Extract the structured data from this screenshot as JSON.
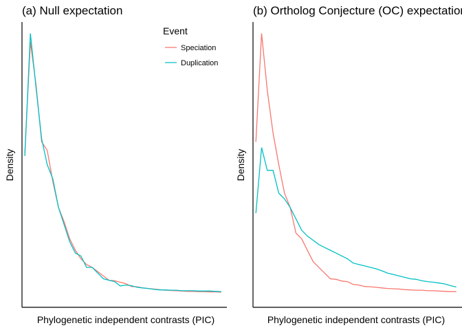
{
  "colors": {
    "speciation": "#F8766D",
    "duplication": "#00BFC4",
    "axis": "#000000",
    "text": "#000000"
  },
  "legend": {
    "title": "Event",
    "entries": [
      {
        "label": "Speciation",
        "color": "#F8766D"
      },
      {
        "label": "Duplication",
        "color": "#00BFC4"
      }
    ],
    "placement": "top-right"
  },
  "chart_data": [
    {
      "type": "line",
      "title": "(a) Null expectation",
      "xlabel": "Phylogenetic independent contrasts (PIC)",
      "ylabel": "Density",
      "grid": false,
      "x": [
        1,
        2,
        3,
        4,
        5,
        6,
        7,
        8,
        9,
        10,
        11,
        12,
        13,
        14,
        15,
        16,
        17,
        18,
        19,
        20,
        21,
        22,
        23,
        24,
        25,
        26,
        27,
        28,
        29,
        30,
        31,
        32,
        33,
        34,
        35,
        36
      ],
      "xlim": [
        0.5,
        37
      ],
      "ylim": [
        0,
        1.0
      ],
      "series": [
        {
          "name": "Speciation",
          "values": [
            0.54,
            0.93,
            0.78,
            0.58,
            0.55,
            0.44,
            0.35,
            0.3,
            0.24,
            0.2,
            0.17,
            0.15,
            0.14,
            0.125,
            0.11,
            0.095,
            0.093,
            0.088,
            0.083,
            0.073,
            0.072,
            0.068,
            0.066,
            0.064,
            0.062,
            0.06,
            0.059,
            0.058,
            0.057,
            0.056,
            0.056,
            0.055,
            0.055,
            0.054,
            0.054,
            0.053
          ]
        },
        {
          "name": "Duplication",
          "values": [
            0.53,
            0.96,
            0.77,
            0.59,
            0.5,
            0.45,
            0.35,
            0.29,
            0.23,
            0.19,
            0.18,
            0.14,
            0.14,
            0.12,
            0.1,
            0.095,
            0.09,
            0.075,
            0.078,
            0.076,
            0.07,
            0.068,
            0.066,
            0.063,
            0.061,
            0.061,
            0.06,
            0.06,
            0.058,
            0.058,
            0.058,
            0.057,
            0.057,
            0.057,
            0.056,
            0.055
          ]
        }
      ]
    },
    {
      "type": "line",
      "title": "(b) Ortholog Conjecture (OC) expectation",
      "xlabel": "Phylogenetic independent contrasts (PIC)",
      "ylabel": "Density",
      "grid": false,
      "x": [
        1,
        2,
        3,
        4,
        5,
        6,
        7,
        8,
        9,
        10,
        11,
        12,
        13,
        14,
        15,
        16,
        17,
        18,
        19,
        20,
        21,
        22,
        23,
        24,
        25,
        26,
        27,
        28,
        29,
        30,
        31,
        32,
        33,
        34,
        35,
        36
      ],
      "xlim": [
        0.5,
        37
      ],
      "ylim": [
        0,
        1.0
      ],
      "series": [
        {
          "name": "Speciation",
          "values": [
            0.58,
            0.96,
            0.76,
            0.61,
            0.5,
            0.4,
            0.35,
            0.26,
            0.24,
            0.2,
            0.16,
            0.14,
            0.12,
            0.1,
            0.098,
            0.092,
            0.09,
            0.08,
            0.078,
            0.073,
            0.072,
            0.07,
            0.068,
            0.066,
            0.065,
            0.064,
            0.062,
            0.061,
            0.06,
            0.06,
            0.058,
            0.058,
            0.057,
            0.056,
            0.055,
            0.055
          ]
        },
        {
          "name": "Duplication",
          "values": [
            0.33,
            0.56,
            0.48,
            0.48,
            0.4,
            0.38,
            0.35,
            0.31,
            0.27,
            0.25,
            0.235,
            0.22,
            0.21,
            0.2,
            0.19,
            0.18,
            0.17,
            0.155,
            0.15,
            0.145,
            0.14,
            0.135,
            0.128,
            0.12,
            0.115,
            0.11,
            0.105,
            0.1,
            0.098,
            0.093,
            0.09,
            0.088,
            0.085,
            0.082,
            0.076,
            0.071
          ]
        }
      ]
    }
  ]
}
